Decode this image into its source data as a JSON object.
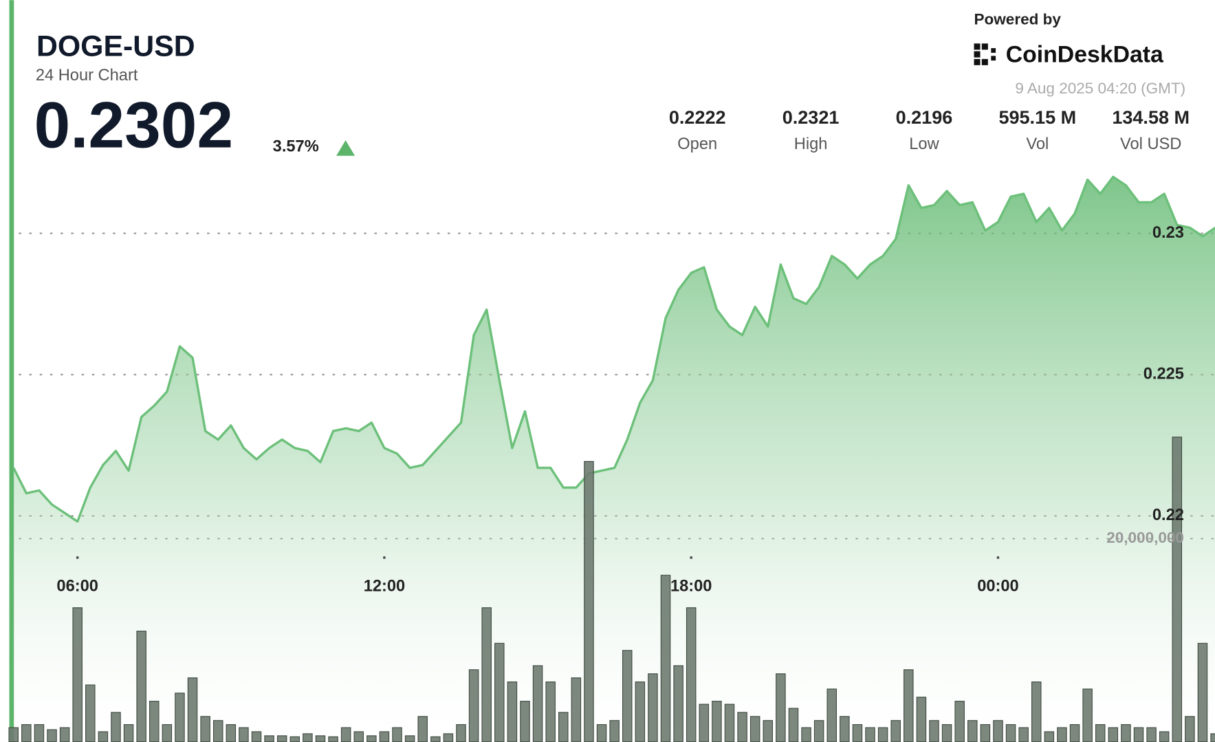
{
  "chart_data": {
    "type": "area",
    "title": "DOGE-USD",
    "subtitle": "24 Hour Chart",
    "price": 0.2302,
    "change": "3.57%",
    "powered_by": "Powered by",
    "brand": "CoinDeskData",
    "timestamp": "9 Aug 2025 04:20 (GMT)",
    "stats": [
      {
        "value": "0.2222",
        "label": "Open"
      },
      {
        "value": "0.2321",
        "label": "High"
      },
      {
        "value": "0.2196",
        "label": "Low"
      },
      {
        "value": "595.15 M",
        "label": "Vol"
      },
      {
        "value": "134.58 M",
        "label": "Vol USD"
      }
    ],
    "x": [
      4.75,
      5,
      5.25,
      5.5,
      5.75,
      6,
      6.25,
      6.5,
      6.75,
      7,
      7.25,
      7.5,
      7.75,
      8,
      8.25,
      8.5,
      8.75,
      9,
      9.25,
      9.5,
      9.75,
      10,
      10.25,
      10.5,
      10.75,
      11,
      11.25,
      11.5,
      11.75,
      12,
      12.25,
      12.5,
      12.75,
      13,
      13.25,
      13.5,
      13.75,
      14,
      14.25,
      14.5,
      14.75,
      15,
      15.25,
      15.5,
      15.75,
      16,
      16.25,
      16.5,
      16.75,
      17,
      17.25,
      17.5,
      17.75,
      18,
      18.25,
      18.5,
      18.75,
      19,
      19.25,
      19.5,
      19.75,
      20,
      20.25,
      20.5,
      20.75,
      21,
      21.25,
      21.5,
      21.75,
      22,
      22.25,
      22.5,
      22.75,
      23,
      23.25,
      23.5,
      23.75,
      24,
      24.25,
      24.5,
      24.75,
      25,
      25.25,
      25.5,
      25.75,
      26,
      26.25,
      26.5,
      26.75,
      27,
      27.25,
      27.5,
      27.75,
      28,
      28.25
    ],
    "xlim": [
      4.75,
      28.25
    ],
    "xticks": [
      {
        "value": 6,
        "label": "06:00"
      },
      {
        "value": 12,
        "label": "12:00"
      },
      {
        "value": 18,
        "label": "18:00"
      },
      {
        "value": 24,
        "label": "00:00"
      }
    ],
    "ylim": [
      0.212,
      0.2325
    ],
    "yticks": [
      0.22,
      0.225,
      0.23
    ],
    "y2lim": [
      0,
      57000000
    ],
    "y2ticks": [
      {
        "value": 20000000,
        "label": "20,000,000"
      }
    ],
    "grid": true,
    "series": [
      {
        "type": "area",
        "color": "#6cc07a",
        "values": [
          0.2217,
          0.2208,
          0.2209,
          0.2204,
          0.2201,
          0.2198,
          0.221,
          0.2218,
          0.2223,
          0.2216,
          0.2235,
          0.2239,
          0.2244,
          0.226,
          0.2256,
          0.223,
          0.2227,
          0.2232,
          0.2224,
          0.222,
          0.2224,
          0.2227,
          0.2224,
          0.2223,
          0.2219,
          0.223,
          0.2231,
          0.223,
          0.2233,
          0.2224,
          0.2222,
          0.2217,
          0.2218,
          0.2223,
          0.2228,
          0.2233,
          0.2264,
          0.2273,
          0.2248,
          0.2224,
          0.2237,
          0.2217,
          0.2217,
          0.221,
          0.221,
          0.2215,
          0.2216,
          0.2217,
          0.2227,
          0.224,
          0.2248,
          0.227,
          0.228,
          0.2286,
          0.2288,
          0.2273,
          0.2267,
          0.2264,
          0.2274,
          0.2267,
          0.2289,
          0.2277,
          0.2275,
          0.2281,
          0.2292,
          0.2289,
          0.2284,
          0.2289,
          0.2292,
          0.2298,
          0.2317,
          0.2309,
          0.231,
          0.2315,
          0.231,
          0.2311,
          0.2301,
          0.2304,
          0.2313,
          0.2314,
          0.2304,
          0.2309,
          0.2301,
          0.2307,
          0.2319,
          0.2314,
          0.232,
          0.2317,
          0.2311,
          0.2311,
          0.2314,
          0.2303,
          0.2302,
          0.2299,
          0.2302
        ]
      },
      {
        "type": "bar",
        "axis": "y2",
        "color": "#6e7b70",
        "values": [
          1400000,
          1700000,
          1700000,
          1200000,
          1400000,
          13200000,
          5600000,
          1000000,
          2900000,
          1700000,
          10900000,
          4000000,
          1700000,
          4800000,
          6300000,
          2500000,
          2100000,
          1700000,
          1400000,
          1000000,
          600000,
          600000,
          500000,
          800000,
          600000,
          500000,
          1400000,
          1000000,
          600000,
          1000000,
          1400000,
          600000,
          2500000,
          500000,
          800000,
          1700000,
          7100000,
          13200000,
          9700000,
          5900000,
          4000000,
          7500000,
          5900000,
          2900000,
          6300000,
          27600000,
          1700000,
          2100000,
          9000000,
          5900000,
          6700000,
          16400000,
          7500000,
          13200000,
          3700000,
          4000000,
          3700000,
          2900000,
          2500000,
          2100000,
          6700000,
          3300000,
          1400000,
          2100000,
          5200000,
          2500000,
          1700000,
          1400000,
          1400000,
          2100000,
          7100000,
          4400000,
          2100000,
          1700000,
          4000000,
          2100000,
          1700000,
          2100000,
          1700000,
          1400000,
          5900000,
          1000000,
          1400000,
          1700000,
          5200000,
          1700000,
          1400000,
          1700000,
          1400000,
          1400000,
          1000000,
          30000000,
          2500000,
          9700000,
          800000
        ]
      }
    ]
  }
}
